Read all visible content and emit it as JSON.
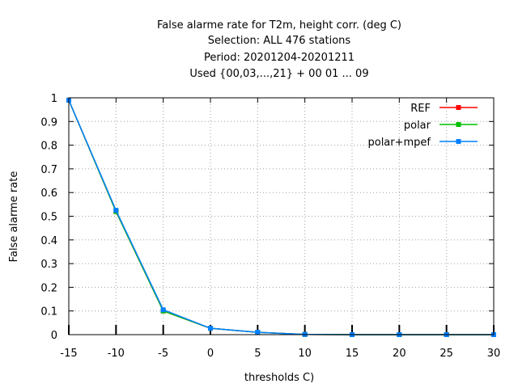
{
  "chart_data": {
    "type": "line",
    "title_lines": [
      "False alarme rate  for T2m, height corr. (deg C)",
      "Selection: ALL    476 stations",
      "Period: 20201204-20201211",
      "Used {00,03,...,21} + 00 01 ... 09"
    ],
    "xlabel": "thresholds C)",
    "ylabel": "False alarme rate",
    "xlim": [
      -15,
      30
    ],
    "ylim": [
      0,
      1
    ],
    "x_ticks": [
      -15,
      -10,
      -5,
      0,
      5,
      10,
      15,
      20,
      25,
      30
    ],
    "x_tick_labels": [
      "-15",
      "-10",
      "-5",
      "0",
      "5",
      "10",
      "15",
      "20",
      "25",
      "30"
    ],
    "y_ticks": [
      0,
      0.1,
      0.2,
      0.3,
      0.4,
      0.5,
      0.6,
      0.7,
      0.8,
      0.9,
      1
    ],
    "y_tick_labels": [
      "0",
      "0.1",
      "0.2",
      "0.3",
      "0.4",
      "0.5",
      "0.6",
      "0.7",
      "0.8",
      "0.9",
      "1"
    ],
    "grid": true,
    "legend_position": "top-right",
    "x": [
      -15,
      -10,
      -5,
      0,
      5,
      10,
      15,
      20,
      25,
      30
    ],
    "series": [
      {
        "name": "REF",
        "color": "#ff0000",
        "values": [
          0.99,
          0.52,
          0.1,
          0.027,
          0.01,
          0.001,
          0,
          0,
          0,
          0
        ]
      },
      {
        "name": "polar",
        "color": "#00c000",
        "values": [
          0.99,
          0.52,
          0.1,
          0.027,
          0.01,
          0.001,
          0,
          0,
          0,
          0
        ]
      },
      {
        "name": "polar+mpef",
        "color": "#0080ff",
        "values": [
          0.99,
          0.525,
          0.105,
          0.027,
          0.01,
          0.001,
          0,
          0,
          0,
          0
        ]
      }
    ]
  }
}
